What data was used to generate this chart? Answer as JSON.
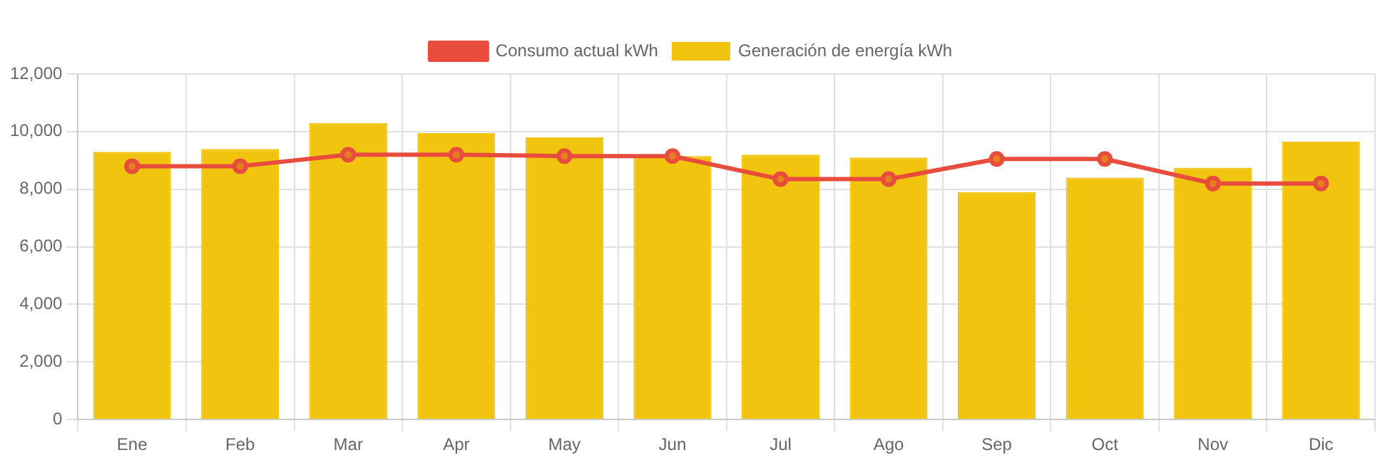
{
  "chart_data": {
    "type": "bar",
    "categories": [
      "Ene",
      "Feb",
      "Mar",
      "Apr",
      "May",
      "Jun",
      "Jul",
      "Ago",
      "Sep",
      "Oct",
      "Nov",
      "Dic"
    ],
    "series": [
      {
        "name": "Consumo actual kWh",
        "type": "line",
        "color": "#e74c3c",
        "values": [
          8800,
          8800,
          9200,
          9200,
          9150,
          9150,
          8350,
          8350,
          9050,
          9050,
          8200,
          8200
        ]
      },
      {
        "name": "Generación de energía kWh",
        "color": "#f1c40f",
        "values": [
          9300,
          9400,
          10300,
          9950,
          9800,
          9150,
          9200,
          9100,
          7900,
          8400,
          8750,
          9650
        ]
      }
    ],
    "ylim": [
      0,
      12000
    ],
    "yticks": [
      0,
      {
        "value": 2000,
        "label": "2,000"
      },
      {
        "value": 4000,
        "label": "4,000"
      },
      {
        "value": 6000,
        "label": "6,000"
      },
      {
        "value": 8000,
        "label": "8,000"
      },
      {
        "value": 10000,
        "label": "10,000"
      },
      {
        "value": 12000,
        "label": "12,000"
      }
    ],
    "grid": true,
    "legend": "top",
    "marker": "circle"
  }
}
